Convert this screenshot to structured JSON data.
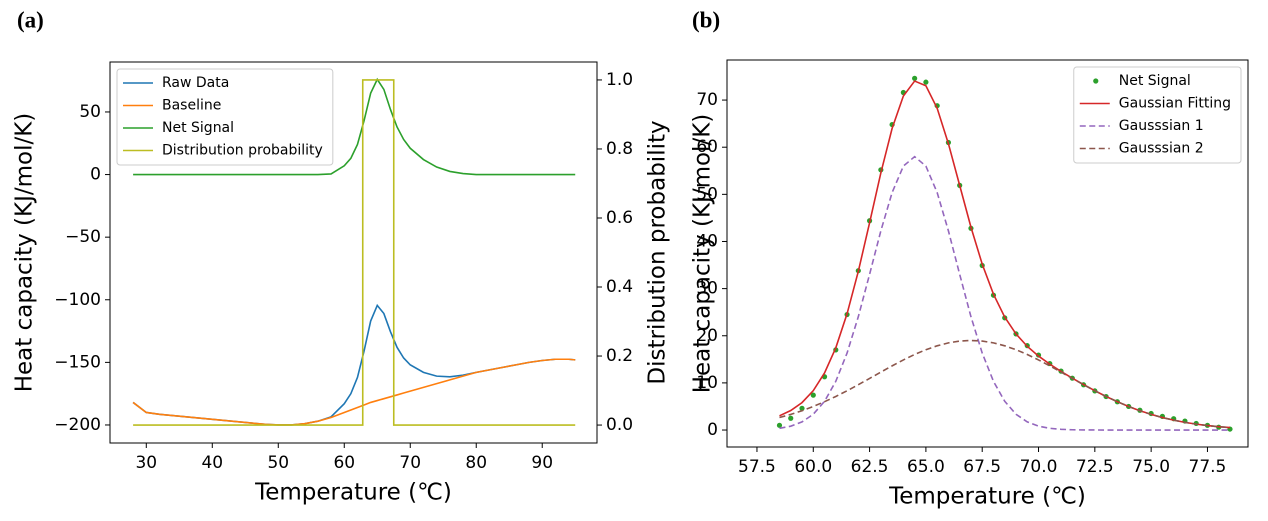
{
  "chart_data": [
    {
      "type": "line",
      "title": "(a)",
      "xlabel": "Temperature (℃)",
      "ylabel": "Heat capacity (KJ/mol/K)",
      "y2label": "Distribution probability",
      "legend": "upper left",
      "xlim": [
        24.5,
        98.3
      ],
      "ylim": [
        -214.4,
        89.9
      ],
      "y2lim": [
        -0.052,
        1.052
      ],
      "xticks": [
        30,
        40,
        50,
        60,
        70,
        80,
        90
      ],
      "yticks": [
        {
          "value": -200,
          "label": "−200"
        },
        {
          "value": -150,
          "label": "−150"
        },
        {
          "value": -100,
          "label": "−100"
        },
        {
          "value": -50,
          "label": "−50"
        },
        0,
        50
      ],
      "y2ticks": [
        {
          "value": 0,
          "label": "0.0"
        },
        {
          "value": 0.2,
          "label": "0.2"
        },
        {
          "value": 0.4,
          "label": "0.4"
        },
        {
          "value": 0.6,
          "label": "0.6"
        },
        {
          "value": 0.8,
          "label": "0.8"
        },
        {
          "value": 1,
          "label": "1.0"
        }
      ],
      "x": [
        28,
        30,
        32,
        34,
        36,
        38,
        40,
        42,
        44,
        46,
        48,
        50,
        52,
        54,
        56,
        58,
        60,
        61,
        62,
        63,
        64,
        65,
        66,
        67,
        68,
        69,
        70,
        72,
        74,
        76,
        78,
        80,
        82,
        84,
        86,
        88,
        90,
        92,
        94,
        95
      ],
      "series": [
        {
          "name": "Raw Data",
          "color": "#1f77b4",
          "values": [
            -182,
            -190,
            -191.5,
            -192.5,
            -193.5,
            -194.5,
            -195.5,
            -196.5,
            -197.5,
            -198.5,
            -199.5,
            -200,
            -200,
            -199,
            -197,
            -193.5,
            -183,
            -175,
            -162,
            -141,
            -117,
            -104.5,
            -111,
            -125.5,
            -138,
            -146.5,
            -152,
            -158,
            -161,
            -161.5,
            -160.2,
            -158,
            -156,
            -154,
            -152,
            -150,
            -148.5,
            -147.5,
            -147.5,
            -148
          ]
        },
        {
          "name": "Baseline",
          "color": "#ff7f0e",
          "values": [
            -182,
            -190,
            -191.5,
            -192.5,
            -193.5,
            -194.5,
            -195.5,
            -196.5,
            -197.5,
            -198.5,
            -199.5,
            -200,
            -200,
            -199,
            -197,
            -194,
            -190,
            -188,
            -186,
            -184,
            -182,
            -180.5,
            -179,
            -177.5,
            -176,
            -174.5,
            -173,
            -170,
            -167,
            -164,
            -161,
            -158,
            -156,
            -154,
            -152,
            -150,
            -148.5,
            -147.5,
            -147.5,
            -148
          ]
        },
        {
          "name": "Net Signal",
          "color": "#2ca02c",
          "values": [
            0,
            0,
            0,
            0,
            0,
            0,
            0,
            0,
            0,
            0,
            0,
            0,
            0,
            0,
            0,
            0.5,
            7,
            13,
            24,
            43,
            65,
            76,
            68,
            52,
            38,
            28,
            21,
            12,
            6,
            2.5,
            0.8,
            0,
            0,
            0,
            0,
            0,
            0,
            0,
            0,
            0
          ]
        },
        {
          "name": "Distribution probability",
          "color": "#bcbd22",
          "axis": "y2",
          "x": [
            28,
            62.8,
            62.8,
            67.5,
            67.5,
            95
          ],
          "values": [
            0,
            0,
            1,
            1,
            0,
            0
          ]
        }
      ]
    },
    {
      "type": "line",
      "title": "(b)",
      "xlabel": "Temperature (℃)",
      "ylabel": "Heat capacity (KJ/mol/K)",
      "legend": "upper right",
      "xlim": [
        56.17,
        79.3
      ],
      "ylim": [
        -3.6,
        78.5
      ],
      "xticks": [
        57.5,
        {
          "value": 60,
          "label": "60.0"
        },
        62.5,
        {
          "value": 65,
          "label": "65.0"
        },
        67.5,
        {
          "value": 70,
          "label": "70.0"
        },
        72.5,
        {
          "value": 75,
          "label": "75.0"
        },
        77.5
      ],
      "yticks": [
        0,
        10,
        20,
        30,
        40,
        50,
        60,
        70
      ],
      "x": [
        58.5,
        59,
        59.5,
        60,
        60.5,
        61,
        61.5,
        62,
        62.5,
        63,
        63.5,
        64,
        64.5,
        65,
        65.5,
        66,
        66.5,
        67,
        67.5,
        68,
        68.5,
        69,
        69.5,
        70,
        70.5,
        71,
        71.5,
        72,
        72.5,
        73,
        73.5,
        74,
        74.5,
        75,
        75.5,
        76,
        76.5,
        77,
        77.5,
        78,
        78.5
      ],
      "series": [
        {
          "name": "Net Signal",
          "color": "#2ca02c",
          "linestyle": "none",
          "marker": "o",
          "values": [
            1.0,
            2.5,
            4.6,
            7.4,
            11.3,
            17.0,
            24.5,
            33.8,
            44.4,
            55.2,
            64.8,
            71.6,
            74.6,
            73.8,
            68.8,
            61.0,
            51.9,
            42.8,
            34.9,
            28.6,
            23.8,
            20.4,
            17.9,
            15.9,
            14.1,
            12.5,
            11.0,
            9.6,
            8.3,
            7.1,
            6.0,
            5.0,
            4.2,
            3.5,
            2.9,
            2.4,
            1.9,
            1.4,
            1.0,
            0.6,
            0.2
          ]
        },
        {
          "name": "Gaussian Fitting",
          "color": "#d62728",
          "linestyle": "solid",
          "values": [
            3.02,
            4.14,
            5.82,
            8.35,
            12.1,
            17.45,
            24.66,
            33.67,
            43.97,
            54.54,
            63.99,
            70.86,
            74.03,
            73.03,
            68.25,
            60.74,
            51.9,
            43.05,
            35.2,
            28.82,
            23.96,
            20.39,
            17.75,
            15.69,
            13.98,
            12.44,
            11.0,
            9.64,
            8.34,
            7.12,
            6.01,
            5.0,
            4.1,
            3.32,
            2.65,
            2.1,
            1.62,
            1.25,
            0.94,
            0.7,
            0.52
          ]
        },
        {
          "name": "Gausssian 1",
          "color": "#9467bd",
          "linestyle": "dashed",
          "values": [
            0.37,
            0.82,
            1.72,
            3.35,
            6.09,
            10.33,
            16.33,
            24.05,
            33.03,
            42.25,
            50.38,
            55.99,
            58,
            55.99,
            50.38,
            42.25,
            33.03,
            24.05,
            16.33,
            10.33,
            6.09,
            3.35,
            1.72,
            0.82,
            0.37,
            0.15,
            0.06,
            0.02,
            0.01,
            0,
            0,
            0,
            0,
            0,
            0,
            0,
            0,
            0,
            0,
            0,
            0
          ]
        },
        {
          "name": "Gausssian 2",
          "color": "#8c564b",
          "linestyle": "dashed",
          "values": [
            2.65,
            3.32,
            4.1,
            5.0,
            6.01,
            7.12,
            8.33,
            9.62,
            10.94,
            12.29,
            13.61,
            14.87,
            16.03,
            17.04,
            17.87,
            18.49,
            18.87,
            19,
            18.87,
            18.49,
            17.87,
            17.04,
            16.03,
            14.87,
            13.61,
            12.29,
            10.94,
            9.62,
            8.33,
            7.12,
            6.01,
            5.0,
            4.1,
            3.32,
            2.65,
            2.1,
            1.62,
            1.25,
            0.94,
            0.7,
            0.52
          ]
        }
      ]
    }
  ]
}
